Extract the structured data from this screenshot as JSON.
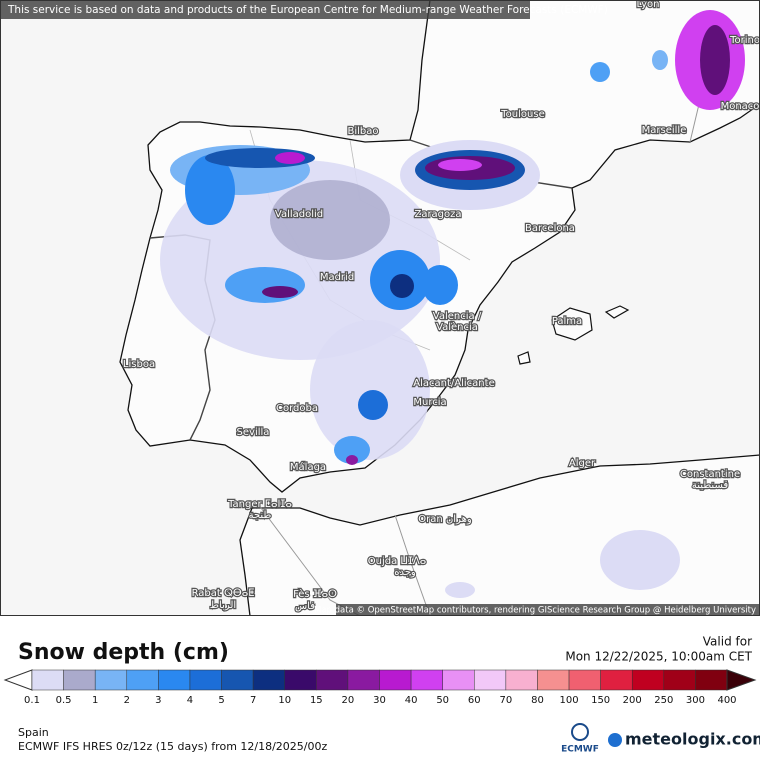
{
  "header": {
    "notice": "This service is based on data and products of the European Centre for Medium-range Weather Forecasts (ECMWF)"
  },
  "map": {
    "places": [
      "Lyon",
      "Torino",
      "Toulouse",
      "Monaco",
      "Marseille",
      "Bilbao",
      "Valladolid",
      "Zaragoza",
      "Barcelona",
      "Madrid",
      "Valencia /",
      "València",
      "Palma",
      "Lisboa",
      "Alacant/Alicante",
      "Murcia",
      "Cordoba",
      "Sevilla",
      "Alger",
      "Málaga",
      "Constantine",
      "قسنطينة",
      "Tanger ⵟⴰⵏⵊⴰ",
      "طنجة",
      "Oran وهران",
      "Oujda ⵡⵊⴷⴰ",
      "وجدة",
      "Rabat ⵕⴱⴰⵟ",
      "الرباط",
      "Fès ⴼⴰⵙ",
      "فاس"
    ],
    "attribution": "Map data © OpenStreetMap contributors, rendering GIScience Research Group @ Heidelberg University"
  },
  "legend": {
    "title": "Snow depth (cm)",
    "valid_label": "Valid for",
    "valid_time": "Mon 12/22/2025, 10:00am CET",
    "scale": [
      0.1,
      0.5,
      1,
      2,
      3,
      4,
      5,
      7,
      10,
      15,
      20,
      30,
      40,
      50,
      60,
      70,
      80,
      100,
      150,
      200,
      250,
      300,
      400
    ],
    "colors": [
      "#dcdcf5",
      "#aaaacc",
      "#78b4f5",
      "#4ea0f5",
      "#2a88f0",
      "#1c6ed8",
      "#1656b0",
      "#0d2f80",
      "#3a0a6a",
      "#60107a",
      "#8a1aa0",
      "#b81ad0",
      "#d040f0",
      "#e890f5",
      "#f2c8f8",
      "#f8b0d0",
      "#f59090",
      "#f06070",
      "#e02040",
      "#c00020",
      "#a00018",
      "#800010",
      "#3a0008"
    ]
  },
  "footer": {
    "region": "Spain",
    "model": "ECMWF IFS HRES 0z/12z (15 days) from 12/18/2025/00z",
    "logos": [
      "ECMWF",
      "meteologix.com"
    ]
  }
}
